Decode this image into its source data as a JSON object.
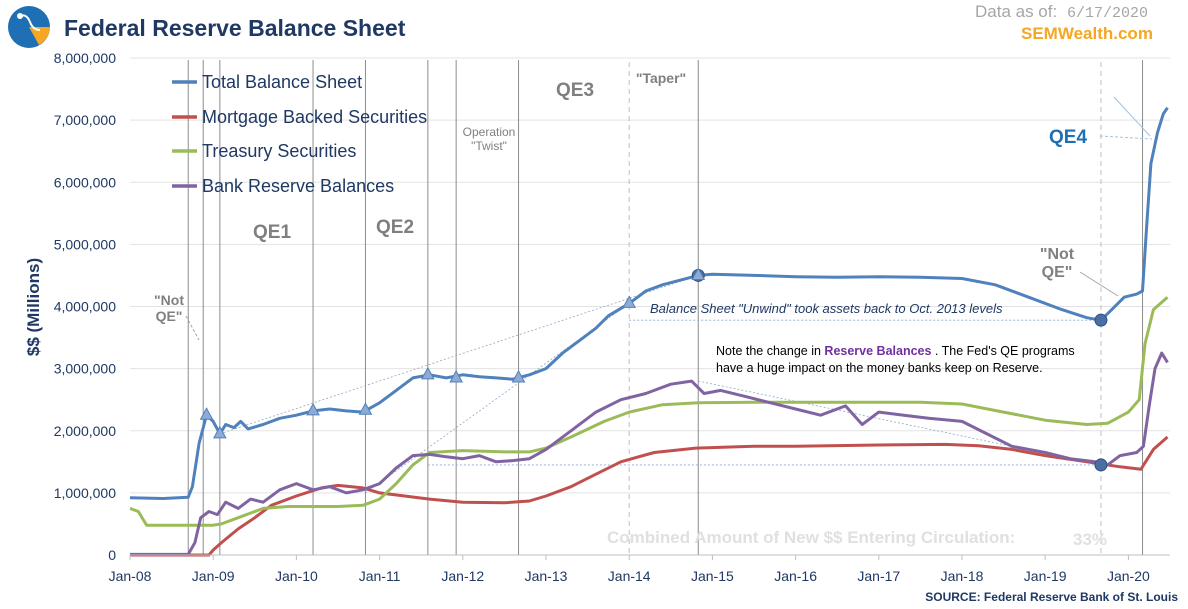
{
  "header": {
    "title": "Federal Reserve Balance Sheet",
    "as_of_label": "Data as of:",
    "as_of_date": "6/17/2020",
    "site": "SEMWealth.com"
  },
  "source": "SOURCE:  Federal Reserve Bank of St. Louis",
  "chart_data": {
    "type": "line",
    "title": "Federal Reserve Balance Sheet",
    "ylabel": "$$ (Millions)",
    "xlabel": "",
    "ylim": [
      0,
      8000000
    ],
    "xlim": [
      2008.0,
      2020.5
    ],
    "grid": true,
    "legend_position": "top-left",
    "y_ticks": [
      {
        "value": 0,
        "label": "0"
      },
      {
        "value": 1000000,
        "label": "1,000,000"
      },
      {
        "value": 2000000,
        "label": "2,000,000"
      },
      {
        "value": 3000000,
        "label": "3,000,000"
      },
      {
        "value": 4000000,
        "label": "4,000,000"
      },
      {
        "value": 5000000,
        "label": "5,000,000"
      },
      {
        "value": 6000000,
        "label": "6,000,000"
      },
      {
        "value": 7000000,
        "label": "7,000,000"
      },
      {
        "value": 8000000,
        "label": "8,000,000"
      }
    ],
    "x_ticks": [
      {
        "value": 2008,
        "label": "Jan-08"
      },
      {
        "value": 2009,
        "label": "Jan-09"
      },
      {
        "value": 2010,
        "label": "Jan-10"
      },
      {
        "value": 2011,
        "label": "Jan-11"
      },
      {
        "value": 2012,
        "label": "Jan-12"
      },
      {
        "value": 2013,
        "label": "Jan-13"
      },
      {
        "value": 2014,
        "label": "Jan-14"
      },
      {
        "value": 2015,
        "label": "Jan-15"
      },
      {
        "value": 2016,
        "label": "Jan-16"
      },
      {
        "value": 2017,
        "label": "Jan-17"
      },
      {
        "value": 2018,
        "label": "Jan-18"
      },
      {
        "value": 2019,
        "label": "Jan-19"
      },
      {
        "value": 2020,
        "label": "Jan-20"
      }
    ],
    "series": [
      {
        "name": "Total Balance Sheet",
        "color": "#4f81bd",
        "points": [
          [
            2008.0,
            920000
          ],
          [
            2008.4,
            910000
          ],
          [
            2008.7,
            930000
          ],
          [
            2008.75,
            1100000
          ],
          [
            2008.83,
            1800000
          ],
          [
            2008.92,
            2250000
          ],
          [
            2009.0,
            2150000
          ],
          [
            2009.08,
            1950000
          ],
          [
            2009.15,
            2100000
          ],
          [
            2009.25,
            2050000
          ],
          [
            2009.33,
            2150000
          ],
          [
            2009.42,
            2030000
          ],
          [
            2009.6,
            2100000
          ],
          [
            2009.8,
            2200000
          ],
          [
            2010.0,
            2250000
          ],
          [
            2010.2,
            2320000
          ],
          [
            2010.4,
            2350000
          ],
          [
            2010.6,
            2320000
          ],
          [
            2010.8,
            2300000
          ],
          [
            2011.0,
            2450000
          ],
          [
            2011.2,
            2650000
          ],
          [
            2011.4,
            2850000
          ],
          [
            2011.6,
            2900000
          ],
          [
            2011.8,
            2850000
          ],
          [
            2012.0,
            2900000
          ],
          [
            2012.2,
            2870000
          ],
          [
            2012.4,
            2850000
          ],
          [
            2012.6,
            2830000
          ],
          [
            2012.8,
            2900000
          ],
          [
            2013.0,
            3000000
          ],
          [
            2013.2,
            3250000
          ],
          [
            2013.4,
            3450000
          ],
          [
            2013.6,
            3650000
          ],
          [
            2013.75,
            3850000
          ],
          [
            2014.0,
            4050000
          ],
          [
            2014.2,
            4250000
          ],
          [
            2014.4,
            4350000
          ],
          [
            2014.6,
            4420000
          ],
          [
            2014.83,
            4500000
          ],
          [
            2015.0,
            4520000
          ],
          [
            2015.5,
            4500000
          ],
          [
            2016.0,
            4480000
          ],
          [
            2016.5,
            4470000
          ],
          [
            2017.0,
            4480000
          ],
          [
            2017.5,
            4470000
          ],
          [
            2018.0,
            4450000
          ],
          [
            2018.4,
            4350000
          ],
          [
            2018.8,
            4150000
          ],
          [
            2019.2,
            3950000
          ],
          [
            2019.5,
            3820000
          ],
          [
            2019.67,
            3780000
          ],
          [
            2019.8,
            3950000
          ],
          [
            2019.95,
            4150000
          ],
          [
            2020.1,
            4200000
          ],
          [
            2020.17,
            4250000
          ],
          [
            2020.22,
            5300000
          ],
          [
            2020.27,
            6300000
          ],
          [
            2020.35,
            6800000
          ],
          [
            2020.42,
            7100000
          ],
          [
            2020.47,
            7200000
          ]
        ]
      },
      {
        "name": "Mortgage Backed Securities",
        "color": "#c0504d",
        "points": [
          [
            2008.0,
            0
          ],
          [
            2008.95,
            0
          ],
          [
            2009.0,
            80000
          ],
          [
            2009.1,
            200000
          ],
          [
            2009.3,
            420000
          ],
          [
            2009.5,
            600000
          ],
          [
            2009.7,
            800000
          ],
          [
            2010.0,
            950000
          ],
          [
            2010.3,
            1080000
          ],
          [
            2010.5,
            1120000
          ],
          [
            2010.8,
            1080000
          ],
          [
            2011.0,
            1000000
          ],
          [
            2011.3,
            950000
          ],
          [
            2011.6,
            900000
          ],
          [
            2012.0,
            850000
          ],
          [
            2012.5,
            840000
          ],
          [
            2012.8,
            870000
          ],
          [
            2013.0,
            950000
          ],
          [
            2013.3,
            1100000
          ],
          [
            2013.6,
            1300000
          ],
          [
            2013.9,
            1500000
          ],
          [
            2014.3,
            1650000
          ],
          [
            2014.8,
            1720000
          ],
          [
            2015.5,
            1750000
          ],
          [
            2016.0,
            1750000
          ],
          [
            2017.0,
            1770000
          ],
          [
            2017.8,
            1780000
          ],
          [
            2018.2,
            1760000
          ],
          [
            2018.6,
            1700000
          ],
          [
            2019.0,
            1600000
          ],
          [
            2019.5,
            1500000
          ],
          [
            2019.9,
            1420000
          ],
          [
            2020.15,
            1380000
          ],
          [
            2020.3,
            1700000
          ],
          [
            2020.47,
            1900000
          ]
        ]
      },
      {
        "name": "Treasury Securities",
        "color": "#9bbb59",
        "points": [
          [
            2008.0,
            750000
          ],
          [
            2008.1,
            700000
          ],
          [
            2008.2,
            480000
          ],
          [
            2008.5,
            480000
          ],
          [
            2008.8,
            480000
          ],
          [
            2009.0,
            480000
          ],
          [
            2009.1,
            500000
          ],
          [
            2009.3,
            600000
          ],
          [
            2009.6,
            750000
          ],
          [
            2009.9,
            780000
          ],
          [
            2010.5,
            780000
          ],
          [
            2010.8,
            800000
          ],
          [
            2011.0,
            900000
          ],
          [
            2011.2,
            1150000
          ],
          [
            2011.4,
            1450000
          ],
          [
            2011.6,
            1650000
          ],
          [
            2012.0,
            1680000
          ],
          [
            2012.5,
            1660000
          ],
          [
            2012.8,
            1660000
          ],
          [
            2013.0,
            1720000
          ],
          [
            2013.3,
            1900000
          ],
          [
            2013.7,
            2150000
          ],
          [
            2014.0,
            2300000
          ],
          [
            2014.4,
            2420000
          ],
          [
            2014.83,
            2450000
          ],
          [
            2015.5,
            2460000
          ],
          [
            2016.5,
            2460000
          ],
          [
            2017.5,
            2460000
          ],
          [
            2018.0,
            2430000
          ],
          [
            2018.5,
            2300000
          ],
          [
            2019.0,
            2170000
          ],
          [
            2019.5,
            2100000
          ],
          [
            2019.75,
            2120000
          ],
          [
            2020.0,
            2300000
          ],
          [
            2020.13,
            2500000
          ],
          [
            2020.2,
            3400000
          ],
          [
            2020.3,
            3950000
          ],
          [
            2020.47,
            4150000
          ]
        ]
      },
      {
        "name": "Bank Reserve Balances",
        "color": "#8064a2",
        "points": [
          [
            2008.0,
            10000
          ],
          [
            2008.7,
            10000
          ],
          [
            2008.78,
            200000
          ],
          [
            2008.85,
            600000
          ],
          [
            2008.95,
            700000
          ],
          [
            2009.05,
            650000
          ],
          [
            2009.15,
            850000
          ],
          [
            2009.3,
            750000
          ],
          [
            2009.45,
            900000
          ],
          [
            2009.6,
            850000
          ],
          [
            2009.8,
            1050000
          ],
          [
            2010.0,
            1150000
          ],
          [
            2010.2,
            1050000
          ],
          [
            2010.4,
            1100000
          ],
          [
            2010.6,
            1000000
          ],
          [
            2010.8,
            1050000
          ],
          [
            2011.0,
            1150000
          ],
          [
            2011.2,
            1400000
          ],
          [
            2011.4,
            1600000
          ],
          [
            2011.6,
            1620000
          ],
          [
            2011.8,
            1580000
          ],
          [
            2012.0,
            1550000
          ],
          [
            2012.2,
            1600000
          ],
          [
            2012.4,
            1500000
          ],
          [
            2012.6,
            1520000
          ],
          [
            2012.8,
            1550000
          ],
          [
            2013.0,
            1700000
          ],
          [
            2013.3,
            2000000
          ],
          [
            2013.6,
            2300000
          ],
          [
            2013.9,
            2500000
          ],
          [
            2014.2,
            2600000
          ],
          [
            2014.5,
            2750000
          ],
          [
            2014.75,
            2800000
          ],
          [
            2014.9,
            2600000
          ],
          [
            2015.1,
            2650000
          ],
          [
            2015.4,
            2550000
          ],
          [
            2015.7,
            2450000
          ],
          [
            2016.0,
            2350000
          ],
          [
            2016.3,
            2250000
          ],
          [
            2016.6,
            2400000
          ],
          [
            2016.8,
            2100000
          ],
          [
            2017.0,
            2300000
          ],
          [
            2017.3,
            2250000
          ],
          [
            2017.6,
            2200000
          ],
          [
            2018.0,
            2150000
          ],
          [
            2018.3,
            1950000
          ],
          [
            2018.6,
            1750000
          ],
          [
            2019.0,
            1650000
          ],
          [
            2019.3,
            1550000
          ],
          [
            2019.6,
            1500000
          ],
          [
            2019.75,
            1450000
          ],
          [
            2019.9,
            1600000
          ],
          [
            2020.1,
            1650000
          ],
          [
            2020.18,
            1750000
          ],
          [
            2020.25,
            2400000
          ],
          [
            2020.32,
            3000000
          ],
          [
            2020.4,
            3250000
          ],
          [
            2020.47,
            3100000
          ]
        ]
      }
    ],
    "markers": [
      {
        "x": 2008.92,
        "y": 2250000,
        "shape": "triangle"
      },
      {
        "x": 2009.08,
        "y": 1950000,
        "shape": "triangle"
      },
      {
        "x": 2010.2,
        "y": 2320000,
        "shape": "triangle"
      },
      {
        "x": 2010.83,
        "y": 2330000,
        "shape": "triangle"
      },
      {
        "x": 2011.58,
        "y": 2900000,
        "shape": "triangle"
      },
      {
        "x": 2011.92,
        "y": 2850000,
        "shape": "triangle"
      },
      {
        "x": 2012.67,
        "y": 2850000,
        "shape": "triangle"
      },
      {
        "x": 2014.0,
        "y": 4050000,
        "shape": "triangle"
      },
      {
        "x": 2014.83,
        "y": 4500000,
        "shape": "circle-triangle"
      },
      {
        "x": 2019.67,
        "y": 3780000,
        "shape": "circle"
      },
      {
        "x": 2019.67,
        "y": 1450000,
        "shape": "circle"
      }
    ],
    "event_lines": [
      {
        "x": 2008.7,
        "style": "solid"
      },
      {
        "x": 2008.88,
        "style": "solid"
      },
      {
        "x": 2009.08,
        "style": "solid"
      },
      {
        "x": 2010.2,
        "style": "solid"
      },
      {
        "x": 2010.83,
        "style": "solid"
      },
      {
        "x": 2011.58,
        "style": "solid"
      },
      {
        "x": 2011.92,
        "style": "solid"
      },
      {
        "x": 2012.67,
        "style": "solid"
      },
      {
        "x": 2014.0,
        "style": "dashed"
      },
      {
        "x": 2014.83,
        "style": "solid"
      },
      {
        "x": 2019.67,
        "style": "dashed"
      },
      {
        "x": 2020.17,
        "style": "solid"
      }
    ],
    "annotations": {
      "qe1": "QE1",
      "qe2": "QE2",
      "qe3": "QE3",
      "qe4": "QE4",
      "operation": "Operation",
      "twist": "\"Twist\"",
      "taper": "\"Taper\"",
      "not_qe_left_1": "\"Not",
      "not_qe_left_2": "QE\"",
      "not_qe_right_1": "\"Not",
      "not_qe_right_2": "QE\"",
      "unwind": "Balance Sheet \"Unwind\" took assets back to Oct. 2013 levels",
      "note_line1_pre": "Note the change in ",
      "note_line1_hl": "Reserve Balances",
      "note_line1_post": " . The Fed's QE programs",
      "note_line2": "have a huge impact on the money banks keep on Reserve.",
      "combined_label": "Combined Amount of New $$ Entering Circulation:",
      "combined_value": "33%"
    }
  }
}
